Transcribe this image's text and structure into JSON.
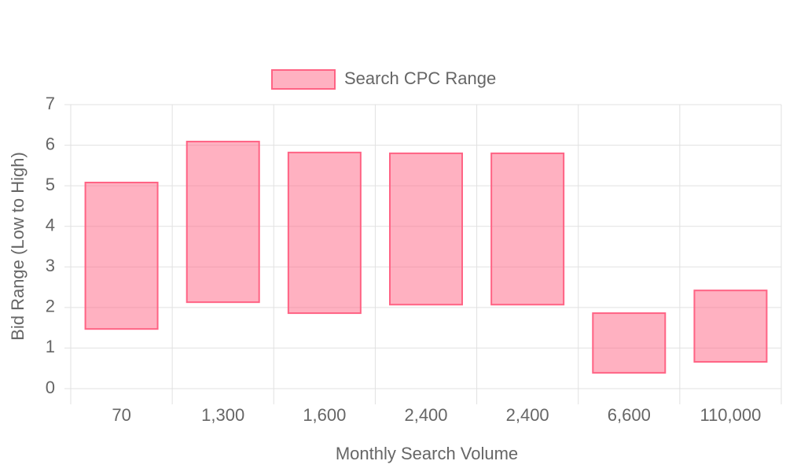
{
  "chart_data": {
    "type": "floating-bar",
    "categories": [
      "70",
      "1,300",
      "1,600",
      "2,400",
      "2,400",
      "6,600",
      "110,000"
    ],
    "series": [
      {
        "name": "Search CPC Range",
        "color": "#ff6384",
        "values": [
          [
            1.47,
            5.08
          ],
          [
            2.13,
            6.09
          ],
          [
            1.86,
            5.82
          ],
          [
            2.07,
            5.8
          ],
          [
            2.07,
            5.8
          ],
          [
            0.39,
            1.86
          ],
          [
            0.66,
            2.42
          ]
        ]
      }
    ],
    "x_label": "Monthly Search Volume",
    "y_label": "Bid Range (Low to High)",
    "ylim": [
      0,
      7
    ],
    "yticks": [
      0,
      1,
      2,
      3,
      4,
      5,
      6,
      7
    ],
    "grid": true,
    "legend": "top"
  }
}
